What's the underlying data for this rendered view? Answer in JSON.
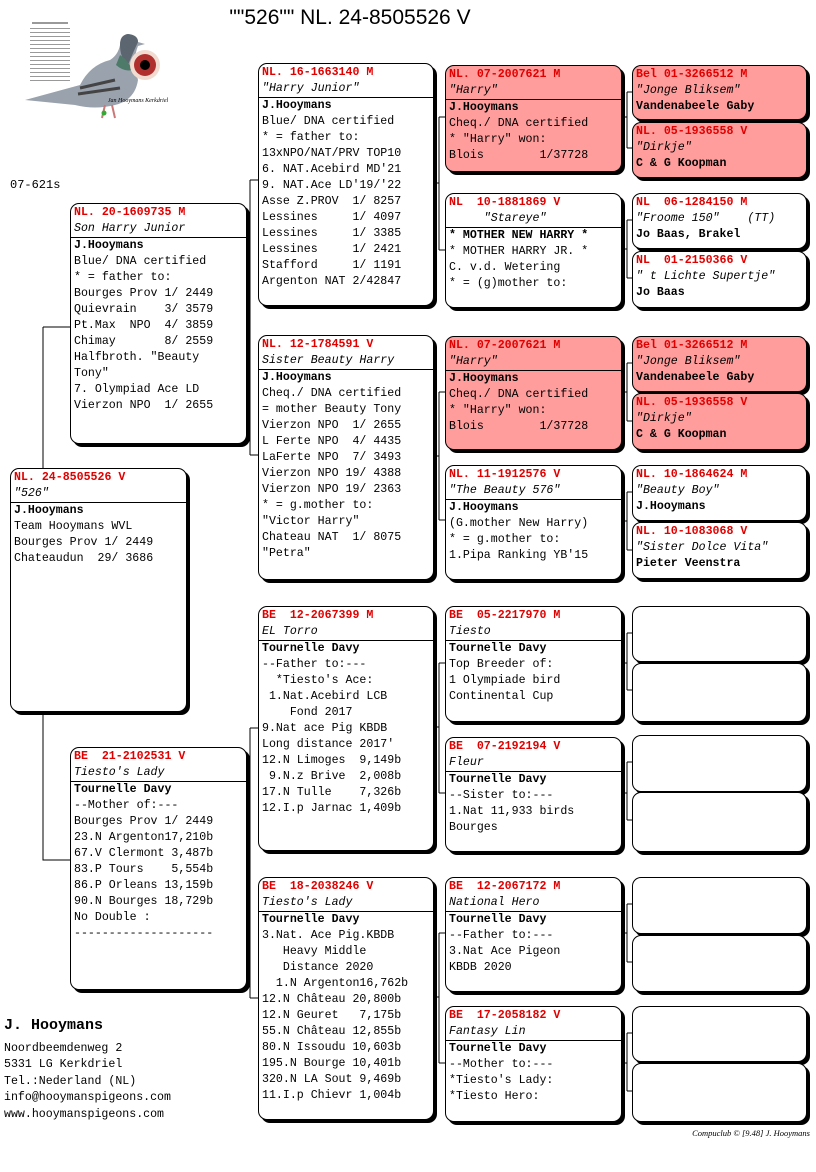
{
  "header": {
    "title": "\"\"526\"\"  NL. 24-8505526 V",
    "code": "07-621s"
  },
  "photo": {
    "caption": "Jan Hooymans Kerkdriel",
    "pigeon_label": "\"Harry\""
  },
  "colors": {
    "ring": "#e00000",
    "highlight": "#ff9c9c"
  },
  "pedigree": {
    "main": {
      "ring": "NL. 24-8505526 V",
      "name": "\"526\"",
      "highlight": false,
      "lines": [
        "J.Hooymans",
        "Team Hooymans WVL",
        "",
        "Bourges Prov 1/ 2449",
        "Chateaudun  29/ 3686"
      ]
    },
    "gen1": [
      {
        "ring": "NL. 20-1609735 M",
        "name": "Son Harry Junior",
        "highlight": false,
        "lines": [
          "J.Hooymans",
          "Blue/ DNA certified",
          "* = father to:",
          "Bourges Prov 1/ 2449",
          "Quievrain    3/ 3579",
          "Pt.Max  NPO  4/ 3859",
          "Chimay       8/ 2559",
          "",
          "Halfbroth. \"Beauty",
          "Tony\"",
          "7. Olympiad Ace LD",
          "Vierzon NPO  1/ 2655"
        ]
      },
      {
        "ring": "BE  21-2102531 V",
        "name": "Tiesto's Lady",
        "highlight": false,
        "lines": [
          "Tournelle Davy",
          "--Mother of:---",
          "Bourges Prov 1/ 2449",
          "23.N Argenton17,210b",
          "67.V Clermont 3,487b",
          "83.P Tours    5,554b",
          "86.P Orleans 13,159b",
          "90.N Bourges 18,729b",
          "No Double :",
          "--------------------"
        ]
      }
    ],
    "gen2": [
      {
        "ring": "NL. 16-1663140 M",
        "name": "\"Harry Junior\"",
        "highlight": false,
        "lines": [
          "J.Hooymans",
          "Blue/ DNA certified",
          "* = father to:",
          "13xNPO/NAT/PRV TOP10",
          "6. NAT.Acebird MD'21",
          "9. NAT.Ace LD'19/'22",
          "Asse Z.PROV  1/ 8257",
          "Lessines     1/ 4097",
          "Lessines     1/ 3385",
          "Lessines     1/ 2421",
          "Stafford     1/ 1191",
          "Argenton NAT 2/42847"
        ]
      },
      {
        "ring": "NL. 12-1784591 V",
        "name": "Sister Beauty Harry",
        "highlight": false,
        "lines": [
          "J.Hooymans",
          "Cheq./ DNA certified",
          "= mother Beauty Tony",
          "Vierzon NPO  1/ 2655",
          "L Ferte NPO  4/ 4435",
          "LaFerte NPO  7/ 3493",
          "Vierzon NPO 19/ 4388",
          "Vierzon NPO 19/ 2363",
          "* = g.mother to:",
          "\"Victor Harry\"",
          "Chateau NAT  1/ 8075",
          "\"Petra\""
        ]
      },
      {
        "ring": "BE  12-2067399 M",
        "name": "EL Torro",
        "highlight": false,
        "lines": [
          "Tournelle Davy",
          "--Father to:---",
          "  *Tiesto's Ace:",
          " 1.Nat.Acebird LCB",
          "    Fond 2017",
          "9.Nat ace Pig KBDB",
          "Long distance 2017'",
          "12.N Limoges  9,149b",
          " 9.N.z Brive  2,008b",
          "17.N Tulle    7,326b",
          "12.I.p Jarnac 1,409b"
        ]
      },
      {
        "ring": "BE  18-2038246 V",
        "name": "Tiesto's Lady",
        "highlight": false,
        "lines": [
          "Tournelle Davy",
          "3.Nat. Ace Pig.KBDB",
          "   Heavy Middle",
          "   Distance 2020",
          "  1.N Argenton16,762b",
          "12.N Château 20,800b",
          "12.N Geuret   7,175b",
          "55.N Château 12,855b",
          "80.N Issoudu 10,603b",
          "195.N Bourge 10,401b",
          "320.N LA Sout 9,469b",
          "11.I.p Chievr 1,004b"
        ]
      }
    ],
    "gen3": [
      {
        "ring": "NL. 07-2007621 M",
        "name": "\"Harry\"",
        "highlight": true,
        "lines": [
          "J.Hooymans",
          "Cheq./ DNA certified",
          "* \"Harry\" won:",
          "Blois        1/37728"
        ]
      },
      {
        "ring": "NL  10-1881869 V",
        "name": "     \"Stareye\"",
        "highlight": false,
        "lines": [
          "* MOTHER NEW HARRY *",
          "* MOTHER HARRY JR. *",
          "C. v.d. Wetering",
          "* = (g)mother to:"
        ]
      },
      {
        "ring": "NL. 07-2007621 M",
        "name": "\"Harry\"",
        "highlight": true,
        "lines": [
          "J.Hooymans",
          "Cheq./ DNA certified",
          "* \"Harry\" won:",
          "Blois        1/37728"
        ]
      },
      {
        "ring": "NL. 11-1912576 V",
        "name": "\"The Beauty 576\"",
        "highlight": false,
        "lines": [
          "J.Hooymans",
          "(G.mother New Harry)",
          "* = g.mother to:",
          "1.Pipa Ranking YB'15"
        ]
      },
      {
        "ring": "BE  05-2217970 M",
        "name": "Tiesto",
        "highlight": false,
        "lines": [
          "Tournelle Davy",
          "Top Breeder of:",
          "1 Olympiade bird",
          "Continental Cup"
        ]
      },
      {
        "ring": "BE  07-2192194 V",
        "name": "Fleur",
        "highlight": false,
        "lines": [
          "Tournelle Davy",
          "--Sister to:---",
          "1.Nat 11,933 birds",
          "Bourges"
        ]
      },
      {
        "ring": "BE  12-2067172 M",
        "name": "National Hero",
        "highlight": false,
        "lines": [
          "Tournelle Davy",
          "--Father to:---",
          "3.Nat Ace Pigeon",
          "KBDB 2020"
        ]
      },
      {
        "ring": "BE  17-2058182 V",
        "name": "Fantasy Lin",
        "highlight": false,
        "lines": [
          "Tournelle Davy",
          "--Mother to:---",
          "*Tiesto's Lady:",
          "*Tiesto Hero:"
        ]
      }
    ],
    "gen4": [
      {
        "ring": "Bel 01-3266512 M",
        "name": "\"Jonge Bliksem\"",
        "highlight": true,
        "lines": [
          "Vandenabeele Gaby"
        ]
      },
      {
        "ring": "NL. 05-1936558 V",
        "name": "\"Dirkje\"",
        "highlight": true,
        "lines": [
          "C & G Koopman"
        ]
      },
      {
        "ring": "NL  06-1284150 M",
        "name": "\"Froome 150\"    (TT)",
        "highlight": false,
        "lines": [
          "Jo Baas, Brakel"
        ]
      },
      {
        "ring": "NL  01-2150366 V",
        "name": "\" t Lichte Supertje\"",
        "highlight": false,
        "lines": [
          "Jo Baas"
        ]
      },
      {
        "ring": "Bel 01-3266512 M",
        "name": "\"Jonge Bliksem\"",
        "highlight": true,
        "lines": [
          "Vandenabeele Gaby"
        ]
      },
      {
        "ring": "NL. 05-1936558 V",
        "name": "\"Dirkje\"",
        "highlight": true,
        "lines": [
          "C & G Koopman"
        ]
      },
      {
        "ring": "NL. 10-1864624 M",
        "name": "\"Beauty Boy\"",
        "highlight": false,
        "lines": [
          "J.Hooymans"
        ]
      },
      {
        "ring": "NL. 10-1083068 V",
        "name": "\"Sister Dolce Vita\"",
        "highlight": false,
        "lines": [
          "Pieter Veenstra"
        ]
      },
      {
        "ring": "",
        "name": "",
        "highlight": false,
        "lines": []
      },
      {
        "ring": "",
        "name": "",
        "highlight": false,
        "lines": []
      },
      {
        "ring": "",
        "name": "",
        "highlight": false,
        "lines": []
      },
      {
        "ring": "",
        "name": "",
        "highlight": false,
        "lines": []
      },
      {
        "ring": "",
        "name": "",
        "highlight": false,
        "lines": []
      },
      {
        "ring": "",
        "name": "",
        "highlight": false,
        "lines": []
      },
      {
        "ring": "",
        "name": "",
        "highlight": false,
        "lines": []
      },
      {
        "ring": "",
        "name": "",
        "highlight": false,
        "lines": []
      }
    ]
  },
  "footer": {
    "name": "J. Hooymans",
    "lines": [
      "Noordbeemdenweg 2",
      "5331 LG  Kerkdriel",
      "Tel.:Nederland (NL)",
      "info@hooymanspigeons.com",
      "www.hooymanspigeons.com"
    ],
    "credit": "Compuclub © [9.48]  J. Hooymans"
  }
}
